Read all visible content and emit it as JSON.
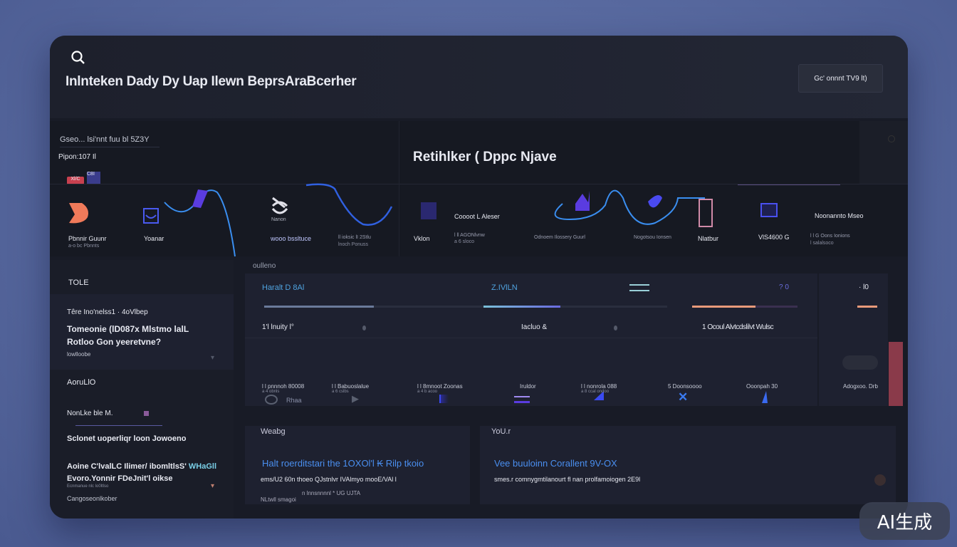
{
  "header": {
    "title": "Inlnteken Dady Dy Uap Ilewn BeprsAraBcerher",
    "button_label": "Gc' onnnt TV9 lt)",
    "search_icon": "search-icon"
  },
  "top_left": {
    "breadcrumb": "Gseo... lsi'nnt fuu bl 5Z3Y",
    "subtitle": "Pipon:107 Il",
    "badge_red": "Xl/C",
    "badge_blue": "C8I",
    "items": [
      {
        "label": "Pbnnir Guunr",
        "sub": "a-o bc Pbnnts"
      },
      {
        "label": "Yoanar",
        "sub": ""
      },
      {
        "label": "Nanon",
        "sub": ""
      },
      {
        "label": "wooo bssltuce",
        "sub": ""
      },
      {
        "label": "ll ioksic lI 2Stlu",
        "sub": "lnoch Ponuss"
      }
    ]
  },
  "top_right": {
    "title": "Retihlker ( Dppc Njave",
    "items": [
      {
        "label": "Coooot L Aleser"
      },
      {
        "label": "Vklon"
      },
      {
        "label": "l ll AGONlvnw",
        "sub": "a 6 sloco"
      },
      {
        "label": "Odnoem Ilossery Guurl"
      },
      {
        "label": "Nogotsou Ionsen"
      },
      {
        "label": "Nlatbur"
      },
      {
        "label": "VlS4600 G"
      },
      {
        "label": "Noonannto Mseo"
      },
      {
        "label": "l l G Oons Ionions",
        "sub": "l salalsoco"
      }
    ]
  },
  "sidebar": {
    "section1": "TOLE",
    "item1_meta": "Têre Ino'nelss1 · 4oVlbep",
    "item1_title": "Tomeonie (lD087x Mlstmo lalL",
    "item1_title2": "Rotloo Gon yeeretvne?",
    "item1_sub": "lowlloobe",
    "section2": "AoruLlO",
    "item2_title": "NonLke ble M.",
    "item3_title": "Sclonet uoperliqr loon Jowoeno",
    "item4_title": "Aoine C'lvalLC Ilimer/ ibomltlsS'",
    "item4_highlight": "WHaGll",
    "item4_title2": "Evoro.Yonnir FDeJnit'l oikse",
    "item4_sub": "Ecnmanue nlc lo0ltlso",
    "item4_footer": "Cangoseonlkober"
  },
  "stats": {
    "section_label": "oulleno",
    "tabs": [
      {
        "label": "Haralt D 8Al",
        "color": "#4fa3e0"
      },
      {
        "label": "Z.IVlLN",
        "color": "#4fa3e0"
      },
      {
        "label": "? 0",
        "color": "#6b6fe0"
      },
      {
        "label": "· l0",
        "color": "#e8eaf2"
      }
    ],
    "progress": [
      {
        "value": 0.5,
        "color": "#6a7a9a"
      },
      {
        "value": 0.42,
        "color": "#7a8cc0"
      },
      {
        "value": 0.6,
        "color": "#e89a7a"
      },
      {
        "value": 0.6,
        "color": "#e89a7a"
      }
    ],
    "row1": [
      "1'l lnuity l°",
      "Iacluo &",
      "1 Ocoul Alvtcdslilvt Wulsc"
    ],
    "icons": [
      "fingerprint-icon",
      "play-icon",
      "flag-icon",
      "stack-icon",
      "triangle-icon",
      "shuffle-icon",
      "spike-icon"
    ],
    "icon_label": "Rhaa",
    "row2": [
      {
        "a": "l l pnnnoh 80008",
        "b": "a 4 obnls"
      },
      {
        "a": "l l Babuoslalue",
        "b": "a 6 cslbs"
      },
      {
        "a": "l l 8mnoot Zoonas",
        "b": "a 4 b acoo"
      },
      {
        "a": "Iruldor",
        "b": ""
      },
      {
        "a": "l l nonrola 088",
        "b": "a 8 ccal ondoo"
      },
      {
        "a": "5 Doonsoooo",
        "b": ""
      },
      {
        "a": "Ooonpah 30",
        "b": ""
      },
      {
        "a": "Adogxoo. Drb",
        "b": ""
      }
    ]
  },
  "bottom": {
    "left_label": "Weabg",
    "left_title": "Halt roerditstari the 1OXOl'l ₭ Rilp tkoio",
    "left_body": "ems/U2 60n thoeo QJstnlvr IVAlmyo mooE/VAl l",
    "left_meta": "n lnnsnnnnl * UG UJTA",
    "left_footer": "NLtwll smagoi",
    "right_label": "YoU.r",
    "right_title": "Vee buuloinn Corallent 9V-OX",
    "right_body": "smes.r comnygmtilanourt fl nan prolfamoiogen 2E9l"
  },
  "watermark": "AI生成",
  "colors": {
    "accent_blue": "#4a8ff0",
    "accent_purple": "#6a4ce0",
    "accent_coral": "#f07a5a",
    "bg": "#181b26"
  }
}
